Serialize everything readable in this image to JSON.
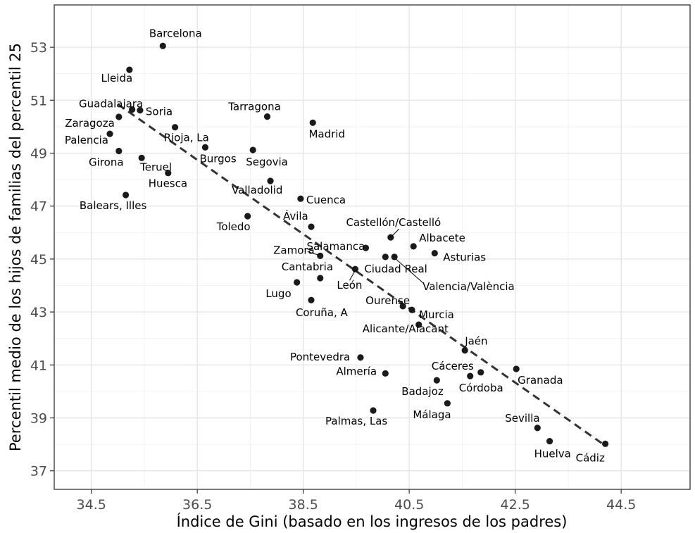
{
  "chart_data": {
    "type": "scatter",
    "xlabel": "Índice de Gini (basado en los ingresos de los padres)",
    "ylabel": "Percentil medio de los hijos de familias del percentil 25",
    "xlim": [
      33.8,
      45.8
    ],
    "ylim": [
      36.3,
      54.6
    ],
    "x_ticks": [
      {
        "value": 34.5,
        "label": "34.5"
      },
      {
        "value": 36.5,
        "label": "36.5"
      },
      {
        "value": 38.5,
        "label": "38.5"
      },
      {
        "value": 40.5,
        "label": "40.5"
      },
      {
        "value": 42.5,
        "label": "42.5"
      },
      {
        "value": 44.5,
        "label": "44.5"
      }
    ],
    "y_ticks": [
      {
        "value": 37,
        "label": "37"
      },
      {
        "value": 39,
        "label": "39"
      },
      {
        "value": 41,
        "label": "41"
      },
      {
        "value": 43,
        "label": "43"
      },
      {
        "value": 45,
        "label": "45"
      },
      {
        "value": 47,
        "label": "47"
      },
      {
        "value": 49,
        "label": "49"
      },
      {
        "value": 51,
        "label": "51"
      },
      {
        "value": 53,
        "label": "53"
      }
    ],
    "grid": true,
    "trend_line": {
      "style": "dashed",
      "x": [
        35.0,
        44.2
      ],
      "y": [
        50.85,
        37.95
      ]
    },
    "points": [
      {
        "name": "Barcelona",
        "x": 35.85,
        "y": 53.05
      },
      {
        "name": "Lleida",
        "x": 35.22,
        "y": 52.15
      },
      {
        "name": "Guadalajara",
        "x": 35.27,
        "y": 50.65
      },
      {
        "name": "Soria",
        "x": 35.42,
        "y": 50.62
      },
      {
        "name": "Zaragoza",
        "x": 35.02,
        "y": 50.37
      },
      {
        "name": "Rioja, La",
        "x": 36.08,
        "y": 49.98
      },
      {
        "name": "Palencia",
        "x": 34.85,
        "y": 49.73
      },
      {
        "name": "Burgos",
        "x": 36.65,
        "y": 49.22
      },
      {
        "name": "Segovia",
        "x": 37.55,
        "y": 49.12
      },
      {
        "name": "Girona",
        "x": 35.02,
        "y": 49.08
      },
      {
        "name": "Teruel",
        "x": 35.45,
        "y": 48.82
      },
      {
        "name": "Huesca",
        "x": 35.95,
        "y": 48.25
      },
      {
        "name": "Valladolid",
        "x": 37.88,
        "y": 47.95
      },
      {
        "name": "Balears, Illes",
        "x": 35.15,
        "y": 47.42
      },
      {
        "name": "Cuenca",
        "x": 38.45,
        "y": 47.28
      },
      {
        "name": "Toledo",
        "x": 37.45,
        "y": 46.62
      },
      {
        "name": "Ávila",
        "x": 38.65,
        "y": 46.22
      },
      {
        "name": "Tarragona",
        "x": 37.82,
        "y": 50.38
      },
      {
        "name": "Madrid",
        "x": 38.68,
        "y": 50.15
      },
      {
        "name": "Castellón/Castelló",
        "x": 40.15,
        "y": 45.82
      },
      {
        "name": "Salamanca",
        "x": 39.68,
        "y": 45.42
      },
      {
        "name": "Albacete",
        "x": 40.58,
        "y": 45.48
      },
      {
        "name": "Asturias",
        "x": 40.98,
        "y": 45.22
      },
      {
        "name": "Zamora",
        "x": 38.82,
        "y": 45.12
      },
      {
        "name": "Ciudad Real",
        "x": 40.05,
        "y": 45.08
      },
      {
        "name": "Valencia/València",
        "x": 40.22,
        "y": 45.08
      },
      {
        "name": "León",
        "x": 39.48,
        "y": 44.62
      },
      {
        "name": "Cantabria",
        "x": 38.82,
        "y": 44.28
      },
      {
        "name": "Lugo",
        "x": 38.38,
        "y": 44.12
      },
      {
        "name": "Coruña, A",
        "x": 38.65,
        "y": 43.45
      },
      {
        "name": "Ourense",
        "x": 40.38,
        "y": 43.22
      },
      {
        "name": "Murcia",
        "x": 40.55,
        "y": 43.08
      },
      {
        "name": "Alicante/Alacant",
        "x": 40.68,
        "y": 42.52
      },
      {
        "name": "Jaén",
        "x": 41.55,
        "y": 41.55
      },
      {
        "name": "Pontevedra",
        "x": 39.58,
        "y": 41.28
      },
      {
        "name": "Cáceres",
        "x": 41.85,
        "y": 40.72
      },
      {
        "name": "Granada",
        "x": 42.52,
        "y": 40.85
      },
      {
        "name": "Almería",
        "x": 40.05,
        "y": 40.68
      },
      {
        "name": "Córdoba",
        "x": 41.65,
        "y": 40.58
      },
      {
        "name": "Badajoz",
        "x": 41.02,
        "y": 40.42
      },
      {
        "name": "Málaga",
        "x": 41.22,
        "y": 39.55
      },
      {
        "name": "Palmas, Las",
        "x": 39.82,
        "y": 39.28
      },
      {
        "name": "Sevilla",
        "x": 42.92,
        "y": 38.62
      },
      {
        "name": "Huelva",
        "x": 43.15,
        "y": 38.12
      },
      {
        "name": "Cádiz",
        "x": 44.2,
        "y": 38.02
      }
    ]
  },
  "colors": {
    "panel_border": "#333333",
    "grid_major": "#e5e5e5",
    "grid_minor": "#f2f2f2",
    "point": "#1a1a1a",
    "trend_line": "#333333",
    "tick_text": "#4d4d4d",
    "text": "#000000"
  }
}
